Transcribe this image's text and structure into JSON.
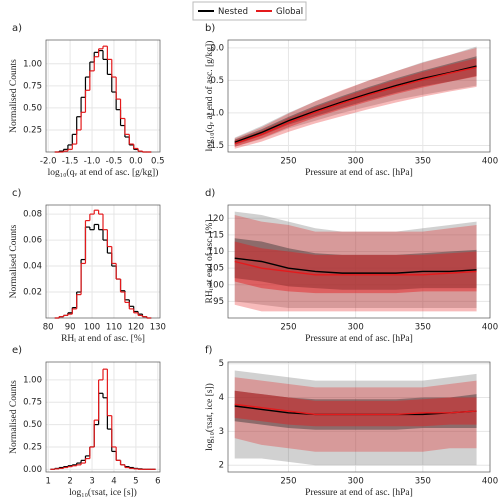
{
  "legend": [
    "Nested",
    "Global"
  ],
  "chart_data": [
    {
      "type": "step",
      "panel_label": "a)",
      "xlabel": "log₁₀(qᵥ at end of asc. [g/kg])",
      "ylabel": "Normalised Counts",
      "x": [
        -1.8,
        -1.7,
        -1.6,
        -1.5,
        -1.4,
        -1.3,
        -1.2,
        -1.1,
        -1.0,
        -0.9,
        -0.8,
        -0.7,
        -0.6,
        -0.5,
        -0.4,
        -0.3,
        -0.2,
        -0.1,
        0,
        0.1,
        0.2,
        0.3
      ],
      "series": [
        {
          "color": "#000000",
          "values": [
            0,
            0.01,
            0.03,
            0.08,
            0.2,
            0.4,
            0.62,
            0.85,
            1.02,
            1.13,
            1.15,
            1.05,
            0.88,
            0.68,
            0.48,
            0.3,
            0.17,
            0.08,
            0.03,
            0.01,
            0,
            0
          ]
        },
        {
          "color": "#e41a1c",
          "values": [
            0,
            0,
            0.01,
            0.03,
            0.09,
            0.25,
            0.45,
            0.7,
            0.92,
            1.08,
            1.17,
            1.2,
            1.05,
            0.85,
            0.6,
            0.38,
            0.2,
            0.09,
            0.04,
            0.01,
            0,
            0
          ]
        }
      ],
      "xlim": [
        -2.05,
        0.55
      ],
      "xticks": [
        {
          "value": -2,
          "label": "-2.0"
        },
        -1.5,
        {
          "value": -1,
          "label": "-1.0"
        },
        -0.5,
        {
          "value": 0,
          "label": "0.0"
        },
        0.5
      ],
      "ylim": [
        0,
        1.27
      ],
      "yticks": [
        0.25,
        {
          "value": 0.5,
          "label": "0.50"
        },
        0.75,
        {
          "value": 1,
          "label": "1.00"
        }
      ],
      "grid": true
    },
    {
      "type": "band",
      "panel_label": "b)",
      "xlabel": "Pressure at end of asc. [hPa]",
      "ylabel": "log₁₀(qᵥ at end of asc. [g/kg])",
      "x": [
        210,
        230,
        250,
        270,
        290,
        310,
        330,
        350,
        370,
        390
      ],
      "series": [
        {
          "color": "#000000",
          "values": [
            -1.45,
            -1.3,
            -1.12,
            -0.97,
            -0.83,
            -0.7,
            -0.58,
            -0.47,
            -0.38,
            -0.28
          ],
          "inner_low": [
            -1.49,
            -1.35,
            -1.18,
            -1.05,
            -0.92,
            -0.8,
            -0.69,
            -0.59,
            -0.52,
            -0.43
          ],
          "inner_high": [
            -1.41,
            -1.25,
            -1.06,
            -0.89,
            -0.74,
            -0.6,
            -0.47,
            -0.35,
            -0.24,
            -0.13
          ],
          "outer_low": [
            -1.52,
            -1.4,
            -1.24,
            -1.12,
            -1.0,
            -0.9,
            -0.8,
            -0.72,
            -0.65,
            -0.58
          ],
          "outer_high": [
            -1.38,
            -1.2,
            -1.0,
            -0.82,
            -0.66,
            -0.5,
            -0.36,
            -0.22,
            -0.11,
            0.02
          ]
        },
        {
          "color": "#e41a1c",
          "values": [
            -1.47,
            -1.33,
            -1.15,
            -0.99,
            -0.85,
            -0.72,
            -0.6,
            -0.49,
            -0.39,
            -0.3
          ],
          "inner_low": [
            -1.52,
            -1.39,
            -1.22,
            -1.07,
            -0.94,
            -0.82,
            -0.71,
            -0.61,
            -0.52,
            -0.44
          ],
          "inner_high": [
            -1.42,
            -1.27,
            -1.08,
            -0.91,
            -0.76,
            -0.62,
            -0.49,
            -0.37,
            -0.26,
            -0.16
          ],
          "outer_low": [
            -1.55,
            -1.44,
            -1.29,
            -1.16,
            -1.05,
            -0.94,
            -0.84,
            -0.75,
            -0.67,
            -0.6
          ],
          "outer_high": [
            -1.39,
            -1.22,
            -1.01,
            -0.82,
            -0.65,
            -0.5,
            -0.36,
            -0.23,
            -0.11,
            0.0
          ]
        }
      ],
      "xlim": [
        205,
        400
      ],
      "xticks": [
        250,
        300,
        350,
        400
      ],
      "ylim": [
        -1.6,
        0.12
      ],
      "yticks": [
        -1.5,
        {
          "value": -1,
          "label": "-1.0"
        },
        -0.5,
        {
          "value": 0,
          "label": "0.0"
        }
      ],
      "grid": true
    },
    {
      "type": "step",
      "panel_label": "c)",
      "xlabel": "RHᵢ at end of asc. [%]",
      "ylabel": "Normalised Counts",
      "x": [
        84,
        86,
        88,
        90,
        92,
        94,
        96,
        98,
        100,
        102,
        104,
        106,
        108,
        110,
        112,
        114,
        116,
        118,
        120,
        122,
        124,
        126
      ],
      "series": [
        {
          "color": "#000000",
          "values": [
            0,
            0.001,
            0.002,
            0.004,
            0.008,
            0.02,
            0.045,
            0.07,
            0.068,
            0.072,
            0.068,
            0.06,
            0.05,
            0.04,
            0.03,
            0.021,
            0.014,
            0.009,
            0.005,
            0.003,
            0.001,
            0
          ]
        },
        {
          "color": "#e41a1c",
          "values": [
            0,
            0.001,
            0.002,
            0.003,
            0.007,
            0.018,
            0.042,
            0.075,
            0.08,
            0.083,
            0.08,
            0.068,
            0.055,
            0.042,
            0.03,
            0.02,
            0.012,
            0.007,
            0.004,
            0.002,
            0.001,
            0
          ]
        }
      ],
      "xlim": [
        79,
        131
      ],
      "xticks": [
        80,
        90,
        100,
        110,
        120,
        130
      ],
      "ylim": [
        0,
        0.087
      ],
      "yticks": [
        0.02,
        0.04,
        0.06,
        0.08
      ],
      "grid": true
    },
    {
      "type": "band",
      "panel_label": "d)",
      "xlabel": "Pressure at end of asc. [hPa]",
      "ylabel": "RHᵢ at end of asc. [%]",
      "x": [
        210,
        230,
        250,
        270,
        290,
        310,
        330,
        350,
        370,
        390
      ],
      "series": [
        {
          "color": "#000000",
          "values": [
            108,
            107,
            105,
            104,
            103.5,
            103.5,
            103.5,
            104,
            104,
            104.5
          ],
          "inner_low": [
            102,
            101,
            99.5,
            99,
            98.5,
            98.5,
            98.5,
            99,
            99,
            99
          ],
          "inner_high": [
            114,
            113,
            111,
            109.5,
            109,
            109,
            109,
            109.5,
            110,
            110.5
          ],
          "outer_low": [
            95,
            94,
            93,
            93,
            93,
            93,
            93,
            93,
            93,
            93
          ],
          "outer_high": [
            122,
            121,
            119,
            117,
            116,
            116,
            116,
            117,
            118,
            119
          ]
        },
        {
          "color": "#e41a1c",
          "values": [
            107,
            105,
            104,
            103,
            103,
            103,
            103,
            103,
            103.5,
            104
          ],
          "inner_low": [
            101,
            99,
            98,
            97.5,
            97.5,
            97.5,
            97.5,
            98,
            98,
            98
          ],
          "inner_high": [
            113,
            111,
            110,
            109,
            109,
            109,
            109,
            109,
            109.5,
            110
          ],
          "outer_low": [
            94,
            92,
            92,
            92,
            92,
            92,
            92,
            92,
            92,
            92
          ],
          "outer_high": [
            121,
            119,
            118,
            116,
            116,
            116,
            116,
            116,
            117,
            118
          ]
        }
      ],
      "xlim": [
        205,
        400
      ],
      "xticks": [
        250,
        300,
        350,
        400
      ],
      "ylim": [
        90,
        124
      ],
      "yticks": [
        95,
        100,
        105,
        110,
        115,
        120
      ],
      "grid": true
    },
    {
      "type": "step",
      "panel_label": "e)",
      "xlabel": "log₁₀(τsat, ice [s])",
      "ylabel": "Normalised Counts",
      "x": [
        1.2,
        1.4,
        1.6,
        1.8,
        2.0,
        2.2,
        2.4,
        2.6,
        2.8,
        3.0,
        3.2,
        3.4,
        3.6,
        3.8,
        4.0,
        4.2,
        4.4,
        4.6,
        4.8,
        5.0,
        5.2,
        5.4,
        5.6,
        5.8
      ],
      "series": [
        {
          "color": "#000000",
          "values": [
            0,
            0.01,
            0.02,
            0.03,
            0.04,
            0.05,
            0.07,
            0.1,
            0.15,
            0.25,
            0.5,
            0.85,
            0.8,
            0.45,
            0.2,
            0.1,
            0.05,
            0.03,
            0.02,
            0.01,
            0.005,
            0,
            0,
            0
          ]
        },
        {
          "color": "#e41a1c",
          "values": [
            0,
            0.005,
            0.01,
            0.02,
            0.03,
            0.04,
            0.05,
            0.07,
            0.12,
            0.25,
            0.55,
            1.0,
            1.12,
            0.6,
            0.25,
            0.1,
            0.05,
            0.02,
            0.01,
            0.005,
            0,
            0,
            0,
            0
          ]
        }
      ],
      "xlim": [
        0.9,
        6.1
      ],
      "xticks": [
        1,
        2,
        3,
        4,
        5,
        6
      ],
      "ylim": [
        -0.03,
        1.2
      ],
      "yticks": [
        {
          "value": 0,
          "label": "0.00"
        },
        0.25,
        {
          "value": 0.5,
          "label": "0.50"
        },
        0.75,
        {
          "value": 1,
          "label": "1.00"
        }
      ],
      "grid": true
    },
    {
      "type": "band",
      "panel_label": "f)",
      "xlabel": "Pressure at end of asc. [hPa]",
      "ylabel": "log₁₀(τsat, ice [s])",
      "x": [
        210,
        230,
        250,
        270,
        290,
        310,
        330,
        350,
        370,
        390
      ],
      "series": [
        {
          "color": "#000000",
          "values": [
            3.75,
            3.65,
            3.55,
            3.5,
            3.5,
            3.5,
            3.5,
            3.5,
            3.55,
            3.6
          ],
          "inner_low": [
            3.3,
            3.2,
            3.1,
            3.05,
            3.05,
            3.05,
            3.05,
            3.1,
            3.1,
            3.1
          ],
          "inner_high": [
            4.2,
            4.1,
            4.0,
            3.95,
            3.95,
            3.95,
            3.95,
            4.0,
            4.0,
            4.1
          ],
          "outer_low": [
            2.2,
            2.2,
            2.1,
            2.0,
            2.0,
            2.0,
            2.0,
            2.0,
            2.0,
            2.0
          ],
          "outer_high": [
            4.8,
            4.7,
            4.6,
            4.5,
            4.5,
            4.5,
            4.5,
            4.5,
            4.6,
            4.7
          ]
        },
        {
          "color": "#e41a1c",
          "values": [
            3.8,
            3.7,
            3.6,
            3.5,
            3.5,
            3.5,
            3.5,
            3.55,
            3.55,
            3.6
          ],
          "inner_low": [
            3.4,
            3.3,
            3.2,
            3.15,
            3.15,
            3.15,
            3.15,
            3.15,
            3.2,
            3.2
          ],
          "inner_high": [
            4.2,
            4.1,
            4.0,
            3.9,
            3.9,
            3.9,
            3.9,
            3.95,
            4.0,
            4.0
          ],
          "outer_low": [
            2.8,
            2.6,
            2.5,
            2.4,
            2.4,
            2.4,
            2.4,
            2.4,
            2.5,
            2.5
          ],
          "outer_high": [
            4.6,
            4.5,
            4.4,
            4.3,
            4.3,
            4.3,
            4.3,
            4.3,
            4.4,
            4.5
          ]
        }
      ],
      "xlim": [
        205,
        400
      ],
      "xticks": [
        250,
        300,
        350,
        400
      ],
      "ylim": [
        1.8,
        5.05
      ],
      "yticks": [
        2,
        3,
        4,
        5
      ],
      "grid": true
    }
  ]
}
